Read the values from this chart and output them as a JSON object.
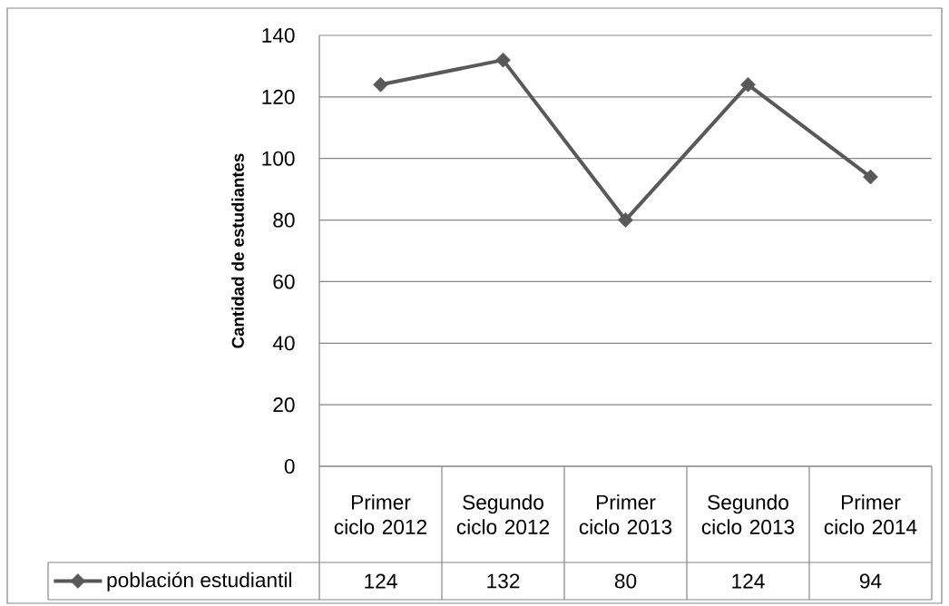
{
  "chart_data": {
    "type": "line",
    "ylabel": "Cantidad de estudiantes",
    "categories": [
      "Primer ciclo 2012",
      "Segundo ciclo 2012",
      "Primer ciclo 2013",
      "Segundo ciclo 2013",
      "Primer ciclo 2014"
    ],
    "series": [
      {
        "name": "población estudiantil",
        "color": "#595959",
        "values": [
          124,
          132,
          80,
          124,
          94
        ],
        "value_labels": [
          "124",
          "132",
          "80",
          "124",
          "94"
        ]
      }
    ],
    "ylim": [
      0,
      140
    ],
    "yticks": [
      0,
      20,
      40,
      60,
      80,
      100,
      120,
      140
    ],
    "grid": "y",
    "legend": "bottom",
    "marker": "diamond",
    "line_style": "solid"
  }
}
